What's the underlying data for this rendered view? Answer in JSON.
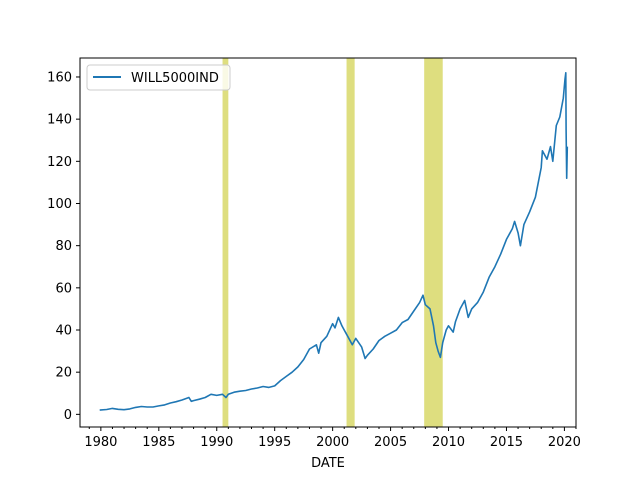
{
  "chart_data": {
    "type": "line",
    "title": "",
    "xlabel": "DATE",
    "ylabel": "",
    "xlim": [
      1978.2,
      2021.0
    ],
    "ylim": [
      -6,
      169
    ],
    "x_ticks": [
      1980,
      1985,
      1990,
      1995,
      2000,
      2005,
      2010,
      2015,
      2020
    ],
    "x_tick_labels": [
      "1980",
      "1985",
      "1990",
      "1995",
      "2000",
      "2005",
      "2010",
      "2015",
      "2020"
    ],
    "y_ticks": [
      0,
      20,
      40,
      60,
      80,
      100,
      120,
      140,
      160
    ],
    "y_tick_labels": [
      "0",
      "20",
      "40",
      "60",
      "80",
      "100",
      "120",
      "140",
      "160"
    ],
    "grid": false,
    "legend": "upper left",
    "recession_shading": {
      "color": "#dcdc78",
      "spans": [
        [
          1990.5,
          1991.0
        ],
        [
          2001.2,
          2001.9
        ],
        [
          2007.9,
          2009.5
        ]
      ]
    },
    "series": [
      {
        "name": "WILL5000IND",
        "color": "#1f77b4",
        "x": [
          1979.9,
          1980.5,
          1981.0,
          1981.5,
          1982.0,
          1982.5,
          1983.0,
          1983.5,
          1984.0,
          1984.5,
          1985.0,
          1985.5,
          1986.0,
          1986.5,
          1987.0,
          1987.6,
          1987.8,
          1988.0,
          1988.5,
          1989.0,
          1989.5,
          1990.0,
          1990.5,
          1990.8,
          1991.0,
          1991.5,
          1992.0,
          1992.5,
          1993.0,
          1993.5,
          1994.0,
          1994.5,
          1995.0,
          1995.5,
          1996.0,
          1996.5,
          1997.0,
          1997.5,
          1998.0,
          1998.6,
          1998.8,
          1999.0,
          1999.5,
          2000.0,
          2000.2,
          2000.5,
          2000.8,
          2001.0,
          2001.3,
          2001.7,
          2002.0,
          2002.5,
          2002.8,
          2003.0,
          2003.5,
          2004.0,
          2004.5,
          2005.0,
          2005.5,
          2006.0,
          2006.5,
          2007.0,
          2007.5,
          2007.8,
          2008.0,
          2008.4,
          2008.7,
          2008.9,
          2009.1,
          2009.3,
          2009.5,
          2009.8,
          2010.0,
          2010.4,
          2010.6,
          2011.0,
          2011.4,
          2011.7,
          2012.0,
          2012.5,
          2013.0,
          2013.5,
          2014.0,
          2014.5,
          2015.0,
          2015.5,
          2015.7,
          2016.0,
          2016.2,
          2016.5,
          2017.0,
          2017.5,
          2018.0,
          2018.1,
          2018.5,
          2018.8,
          2019.0,
          2019.3,
          2019.6,
          2019.9,
          2020.05,
          2020.12,
          2020.15,
          2020.2,
          2020.25
        ],
        "values": [
          2,
          2.3,
          2.8,
          2.4,
          2.2,
          2.6,
          3.3,
          3.7,
          3.5,
          3.5,
          4.0,
          4.5,
          5.4,
          6.0,
          6.8,
          8.0,
          6.2,
          6.5,
          7.2,
          8.0,
          9.5,
          9.0,
          9.5,
          8.0,
          9.5,
          10.5,
          11.0,
          11.3,
          12.0,
          12.5,
          13.2,
          12.8,
          13.5,
          16.0,
          18.0,
          20.0,
          22.5,
          26.0,
          31.0,
          33.0,
          29.0,
          34.0,
          37.0,
          43.0,
          41.0,
          46.0,
          42.0,
          40.0,
          37.0,
          33.0,
          36.0,
          32.0,
          26.5,
          28.0,
          31.0,
          35.0,
          37.0,
          38.5,
          40.0,
          43.5,
          45.0,
          49.0,
          53.0,
          56.5,
          52.0,
          50.0,
          42.0,
          34.0,
          30.0,
          27.0,
          34.0,
          40.0,
          42.0,
          39.0,
          44.0,
          50.0,
          54.0,
          46.0,
          50.0,
          53.0,
          58.0,
          65.0,
          70.0,
          76.0,
          83.0,
          88.0,
          91.5,
          86.0,
          80.0,
          90.0,
          96.0,
          103.0,
          117.0,
          125.0,
          121.0,
          127.0,
          120.0,
          137.0,
          141.0,
          150.0,
          159.0,
          162.0,
          135.0,
          112.0,
          127.0
        ]
      }
    ]
  }
}
